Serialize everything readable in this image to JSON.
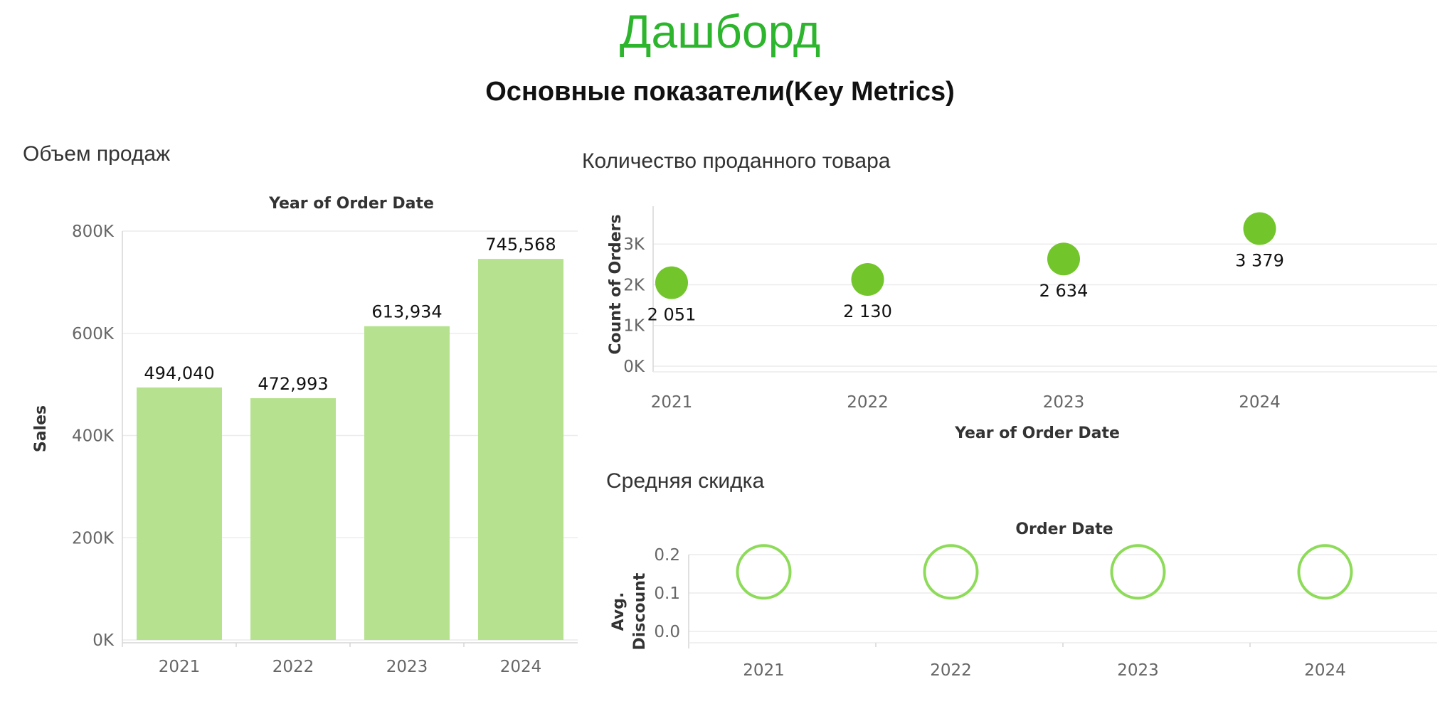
{
  "header": {
    "title": "Дашборд",
    "subtitle": "Основные показатели(Key Metrics)"
  },
  "colors": {
    "title": "#2db52d",
    "bar_fill": "#b6e28f",
    "dot_fill": "#72c52b",
    "ring_stroke": "#8ddb59"
  },
  "chart_data": [
    {
      "id": "sales",
      "section_title": "Объем продаж",
      "type": "bar",
      "xlabel": "Year of Order Date",
      "ylabel": "Sales",
      "categories": [
        "2021",
        "2022",
        "2023",
        "2024"
      ],
      "values": [
        494040,
        472993,
        613934,
        745568
      ],
      "data_labels": [
        "494,040",
        "472,993",
        "613,934",
        "745,568"
      ],
      "ylim": [
        0,
        800000
      ],
      "y_ticks": [
        0,
        200000,
        400000,
        600000,
        800000
      ],
      "y_tick_labels": [
        "0K",
        "200K",
        "400K",
        "600K",
        "800K"
      ],
      "grid": true
    },
    {
      "id": "orders",
      "section_title": "Количество проданного товара",
      "type": "scatter",
      "xlabel": "Year of Order Date",
      "ylabel": "Count of Orders",
      "categories": [
        "2021",
        "2022",
        "2023",
        "2024"
      ],
      "values": [
        2051,
        2130,
        2634,
        3379
      ],
      "data_labels": [
        "2 051",
        "2 130",
        "2 634",
        "3 379"
      ],
      "y_ticks": [
        0,
        1000,
        2000,
        3000
      ],
      "y_tick_labels": [
        "0K",
        "1K",
        "2K",
        "3K"
      ],
      "grid": true
    },
    {
      "id": "discount",
      "section_title": "Средняя скидка",
      "type": "scatter",
      "xlabel": "Order Date",
      "ylabel": "Avg. Discount",
      "categories": [
        "2021",
        "2022",
        "2023",
        "2024"
      ],
      "values": [
        0.155,
        0.155,
        0.155,
        0.155
      ],
      "y_ticks": [
        0,
        0.1,
        0.2
      ],
      "y_tick_labels": [
        "0.0",
        "0.1",
        "0.2"
      ],
      "grid": true
    }
  ]
}
